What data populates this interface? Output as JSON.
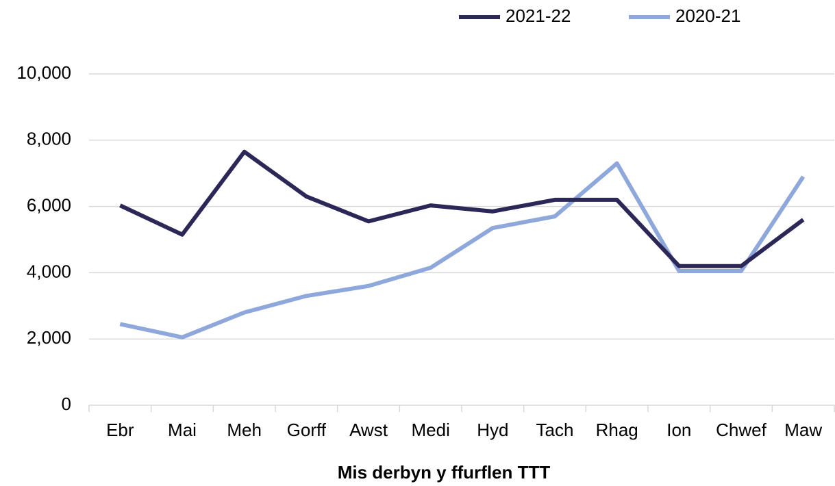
{
  "chart_data": {
    "type": "line",
    "xlabel": "Mis derbyn y ffurflen TTT",
    "categories": [
      "Ebr",
      "Mai",
      "Meh",
      "Gorff",
      "Awst",
      "Medi",
      "Hyd",
      "Tach",
      "Rhag",
      "Ion",
      "Chwef",
      "Maw"
    ],
    "series": [
      {
        "name": "2021-22",
        "color": "#2b2757",
        "values": [
          6030,
          5150,
          7650,
          6300,
          5550,
          6030,
          5850,
          6200,
          6200,
          4200,
          4200,
          5600
        ]
      },
      {
        "name": "2020-21",
        "color": "#8fa8dc",
        "values": [
          2450,
          2050,
          2800,
          3300,
          3600,
          4150,
          5350,
          5700,
          7300,
          4050,
          4050,
          6900
        ]
      }
    ],
    "ylim": [
      0,
      10000
    ],
    "yticks": [
      0,
      {
        "value": 2000,
        "label": "2,000"
      },
      {
        "value": 4000,
        "label": "4,000"
      },
      {
        "value": 6000,
        "label": "6,000"
      },
      {
        "value": 8000,
        "label": "8,000"
      },
      {
        "value": 10000,
        "label": "10,000"
      }
    ],
    "grid": true,
    "legend": "top"
  }
}
